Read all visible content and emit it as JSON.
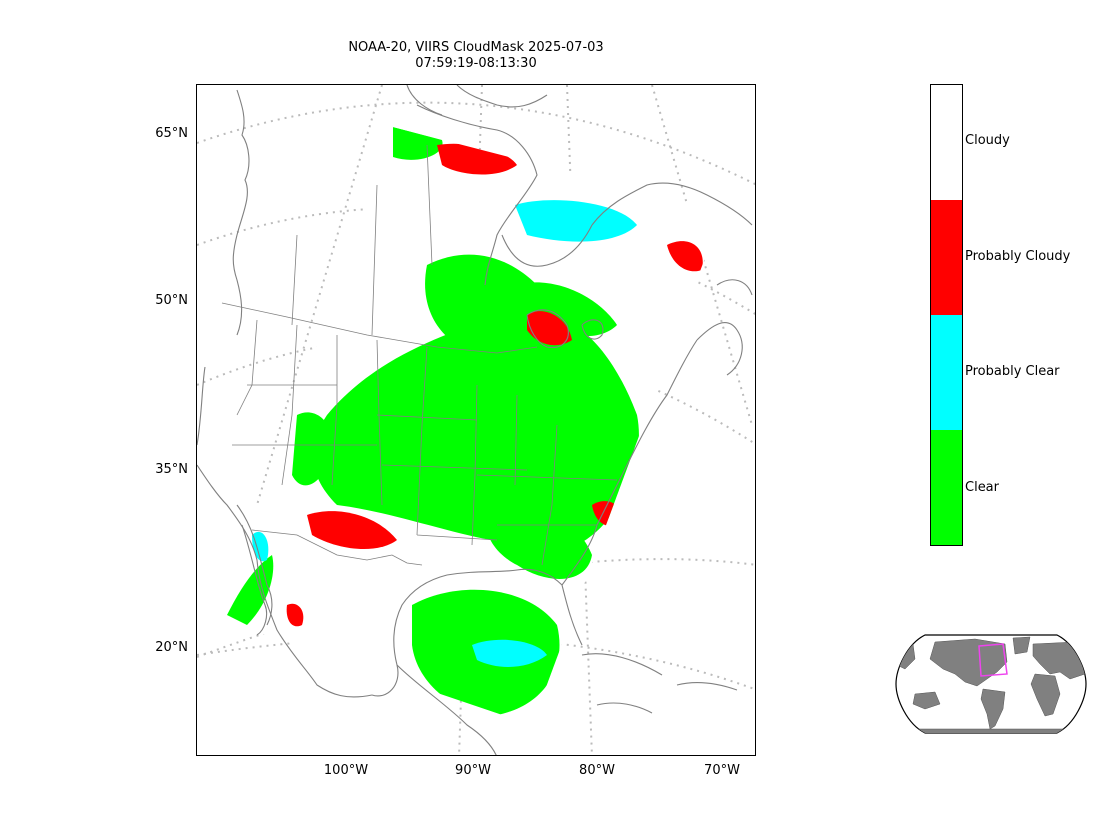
{
  "title": {
    "line1": "NOAA-20, VIIRS CloudMask 2025-07-03",
    "line2": "07:59:19-08:13:30"
  },
  "map": {
    "projection": "lambert-conformal-conic",
    "graticule_style": "dotted",
    "coastline_color": "#808080",
    "graticule_color": "#bbbbbb",
    "lat_labels": [
      "65°N",
      "50°N",
      "35°N",
      "20°N"
    ],
    "lon_labels": [
      "100°W",
      "90°W",
      "80°W",
      "70°W"
    ]
  },
  "colorbar": {
    "categories": [
      {
        "label": "Cloudy",
        "color": "#ffffff"
      },
      {
        "label": "Probably Cloudy",
        "color": "#ff0000"
      },
      {
        "label": "Probably Clear",
        "color": "#00ffff"
      },
      {
        "label": "Clear",
        "color": "#00ff00"
      }
    ]
  },
  "inset": {
    "land_color": "#808080",
    "highlight_color": "#ee44ee"
  }
}
